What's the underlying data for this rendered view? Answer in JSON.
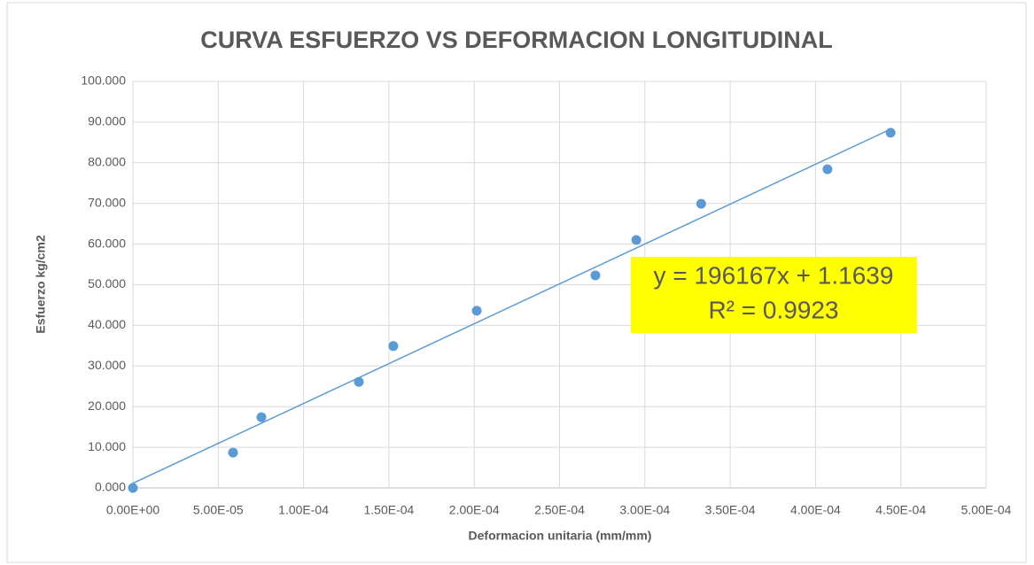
{
  "chart_data": {
    "type": "scatter",
    "title": "CURVA ESFUERZO VS DEFORMACION LONGITUDINAL",
    "x_label": "Deformacion unitaria (mm/mm)",
    "y_label": "Esfuerzo kg/cm2",
    "series": [
      {
        "color": "#5b9bd5",
        "x": [
          0,
          5.87e-05,
          7.53e-05,
          0.0001324,
          0.0001526,
          0.0002015,
          0.000271,
          0.000295,
          0.000333,
          0.000407,
          0.000444
        ],
        "values": [
          0,
          8.7,
          17.4,
          26.1,
          34.9,
          43.6,
          52.3,
          61.0,
          69.9,
          78.4,
          87.4
        ]
      }
    ],
    "trendline": {
      "slope": 196167,
      "intercept": 1.1639,
      "color": "#5b9bd5",
      "equation": "y = 196167x + 1.1639",
      "r2": "R² = 0.9923",
      "box_color": "#ffff00"
    },
    "xlim": [
      0,
      0.0005
    ],
    "xticks": [
      {
        "value": 0,
        "label": "0.00E+00"
      },
      {
        "value": 5e-05,
        "label": "5.00E-05"
      },
      {
        "value": 0.0001,
        "label": "1.00E-04"
      },
      {
        "value": 0.00015,
        "label": "1.50E-04"
      },
      {
        "value": 0.0002,
        "label": "2.00E-04"
      },
      {
        "value": 0.00025,
        "label": "2.50E-04"
      },
      {
        "value": 0.0003,
        "label": "3.00E-04"
      },
      {
        "value": 0.00035,
        "label": "3.50E-04"
      },
      {
        "value": 0.0004,
        "label": "4.00E-04"
      },
      {
        "value": 0.00045,
        "label": "4.50E-04"
      },
      {
        "value": 0.0005,
        "label": "5.00E-04"
      }
    ],
    "ylim": [
      0,
      100
    ],
    "yticks": [
      {
        "value": 0,
        "label": "0.000"
      },
      {
        "value": 10,
        "label": "10.000"
      },
      {
        "value": 20,
        "label": "20.000"
      },
      {
        "value": 30,
        "label": "30.000"
      },
      {
        "value": 40,
        "label": "40.000"
      },
      {
        "value": 50,
        "label": "50.000"
      },
      {
        "value": 60,
        "label": "60.000"
      },
      {
        "value": 70,
        "label": "70.000"
      },
      {
        "value": 80,
        "label": "80.000"
      },
      {
        "value": 90,
        "label": "90.000"
      },
      {
        "value": 100,
        "label": "100.000"
      }
    ],
    "grid": true
  }
}
